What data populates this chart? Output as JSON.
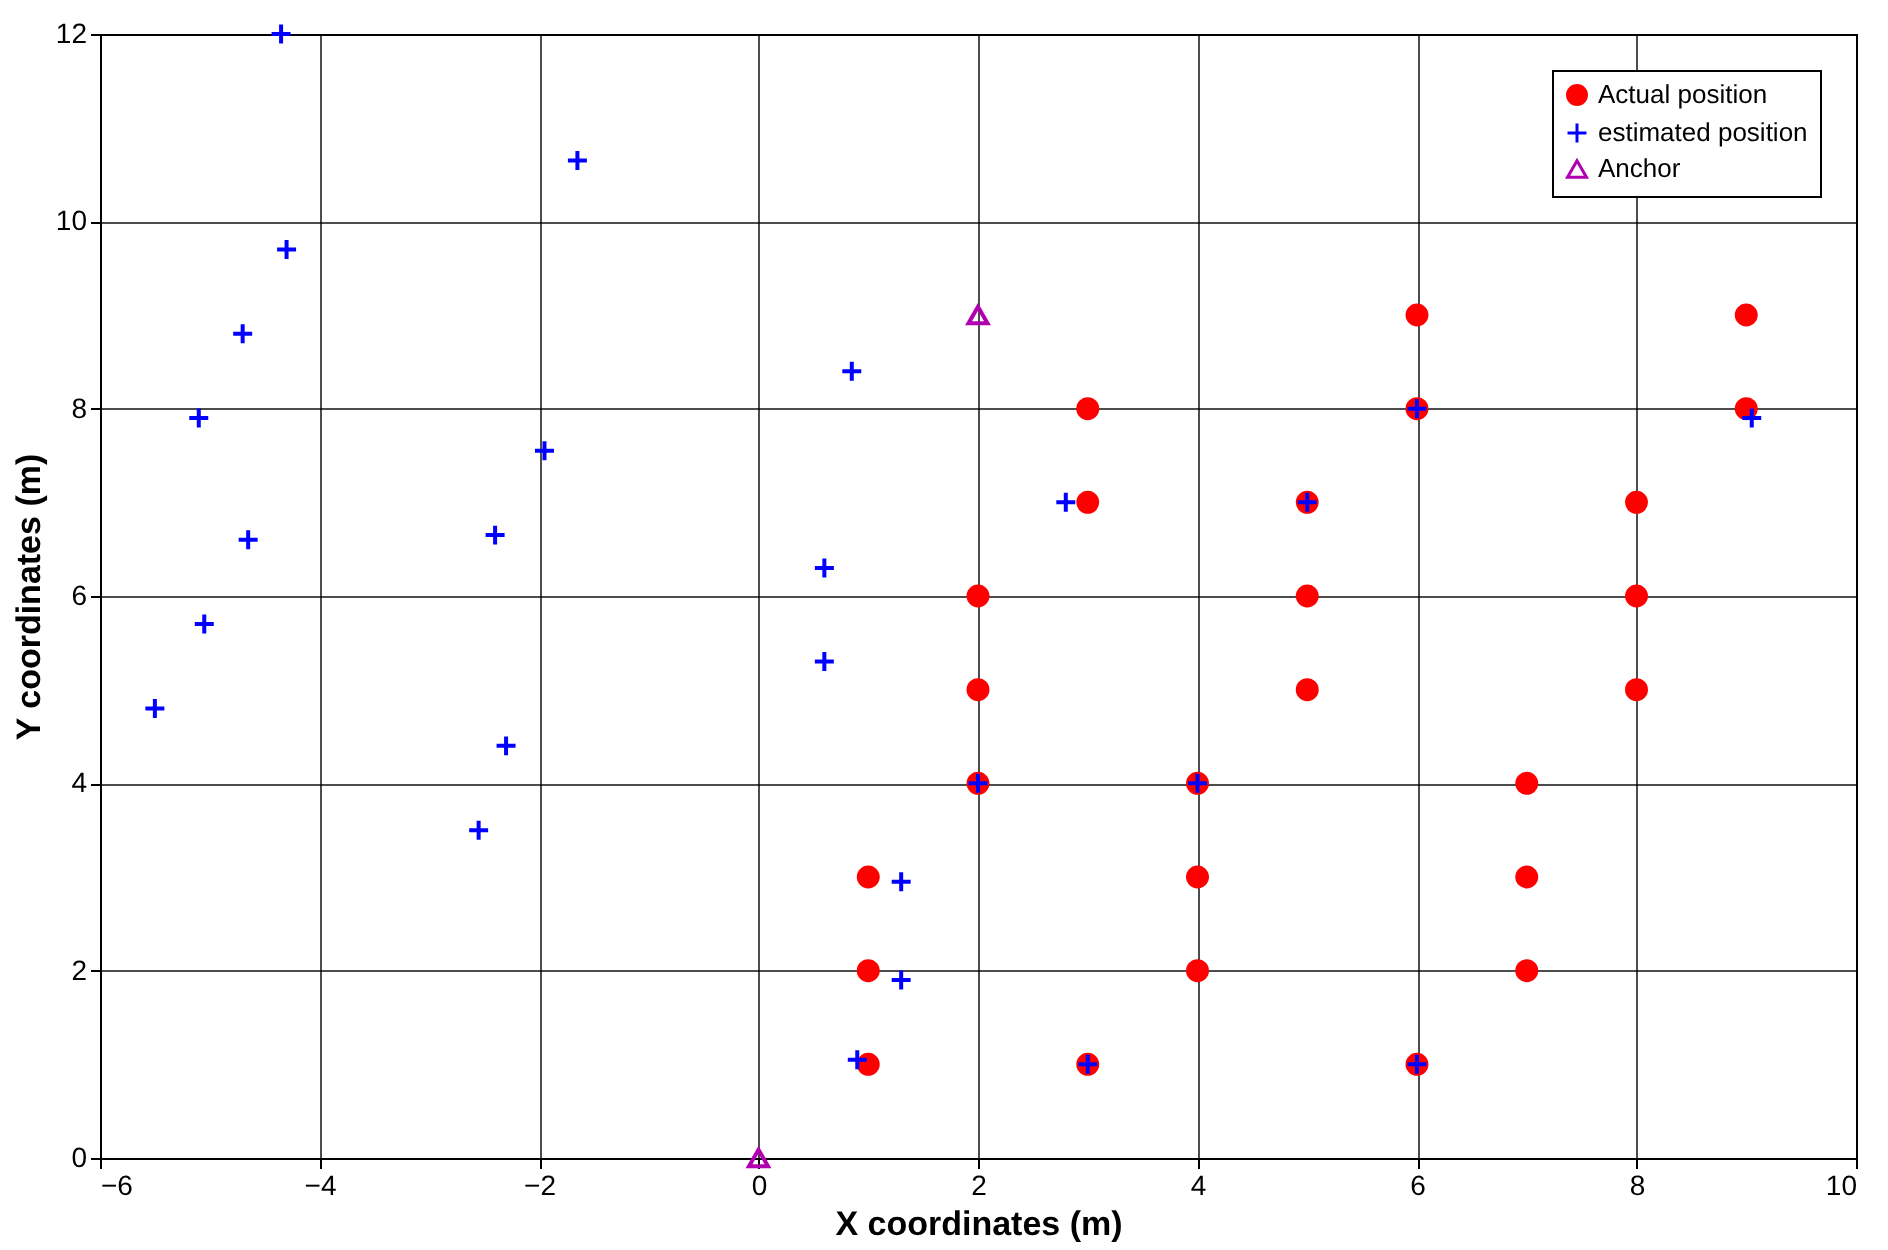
{
  "chart_data": {
    "type": "scatter",
    "xlabel": "X coordinates (m)",
    "ylabel": "Y coordinates (m)",
    "xlim": [
      -6,
      10
    ],
    "xticks": [
      -6,
      -4,
      -2,
      0,
      2,
      4,
      6,
      8,
      10
    ],
    "ylim": [
      0,
      12
    ],
    "yticks": [
      0,
      2,
      4,
      6,
      8,
      10,
      12
    ],
    "grid": true,
    "legend": "top right",
    "series": [
      {
        "name": "Actual position",
        "color": "#ff0000",
        "marker": "circle",
        "x": [
          1,
          1,
          1,
          2,
          2,
          2,
          3,
          3,
          3,
          4,
          4,
          4,
          5,
          5,
          5,
          6,
          6,
          6,
          7,
          7,
          7,
          8,
          8,
          8,
          9,
          9
        ],
        "values": [
          3,
          2,
          1,
          6,
          5,
          4,
          8,
          7,
          1,
          4,
          3,
          2,
          7,
          6,
          5,
          9,
          8,
          1,
          4,
          3,
          2,
          7,
          6,
          5,
          9,
          8
        ]
      },
      {
        "name": "estimated position",
        "color": "#0000ff",
        "marker": "cross",
        "x": [
          -4.35,
          -1.65,
          -4.3,
          -4.7,
          -5.1,
          -1.95,
          -2.4,
          -4.65,
          -5.05,
          -5.5,
          -2.3,
          -2.55,
          0.85,
          0.6,
          0.6,
          2,
          2.8,
          1.3,
          1.3,
          0.9,
          3,
          4,
          5,
          6,
          6,
          9.05
        ],
        "values": [
          12,
          10.65,
          9.7,
          8.8,
          7.9,
          7.55,
          6.65,
          6.6,
          5.7,
          4.8,
          4.4,
          3.5,
          8.4,
          6.3,
          5.3,
          4,
          7,
          2.95,
          1.9,
          1.05,
          1,
          4,
          7,
          8,
          1,
          7.9
        ]
      },
      {
        "name": "Anchor",
        "color": "#b000b0",
        "marker": "triangle",
        "x": [
          2,
          0
        ],
        "values": [
          9,
          0
        ]
      }
    ]
  }
}
